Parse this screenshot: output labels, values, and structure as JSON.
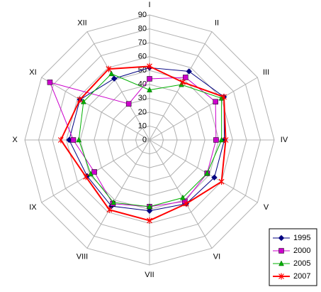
{
  "chart_data": {
    "type": "radar",
    "categories": [
      "I",
      "II",
      "III",
      "IV",
      "V",
      "VI",
      "VII",
      "VIII",
      "IX",
      "X",
      "XI",
      "XII"
    ],
    "ylim": [
      0,
      90
    ],
    "yticks": [
      0,
      10,
      20,
      30,
      40,
      50,
      60,
      70,
      80,
      90
    ],
    "grid": true,
    "legend": "bottom-right",
    "series": [
      {
        "name": "1995",
        "color": "#000080",
        "marker": "diamond",
        "values": [
          52,
          57,
          62,
          54,
          54,
          53,
          51,
          55,
          52,
          58,
          58,
          51
        ]
      },
      {
        "name": "2000",
        "color": "#cc00cc",
        "marker": "square",
        "values": [
          44,
          52,
          55,
          48,
          48,
          51,
          48,
          53,
          46,
          55,
          83,
          30
        ]
      },
      {
        "name": "2005",
        "color": "#00b000",
        "marker": "triangle",
        "values": [
          36,
          46,
          60,
          52,
          48,
          48,
          48,
          52,
          49,
          51,
          55,
          55
        ]
      },
      {
        "name": "2007",
        "color": "#ff0000",
        "marker": "x",
        "values": [
          53,
          48,
          62,
          55,
          60,
          53,
          58,
          58,
          53,
          64,
          58,
          59
        ]
      }
    ]
  }
}
